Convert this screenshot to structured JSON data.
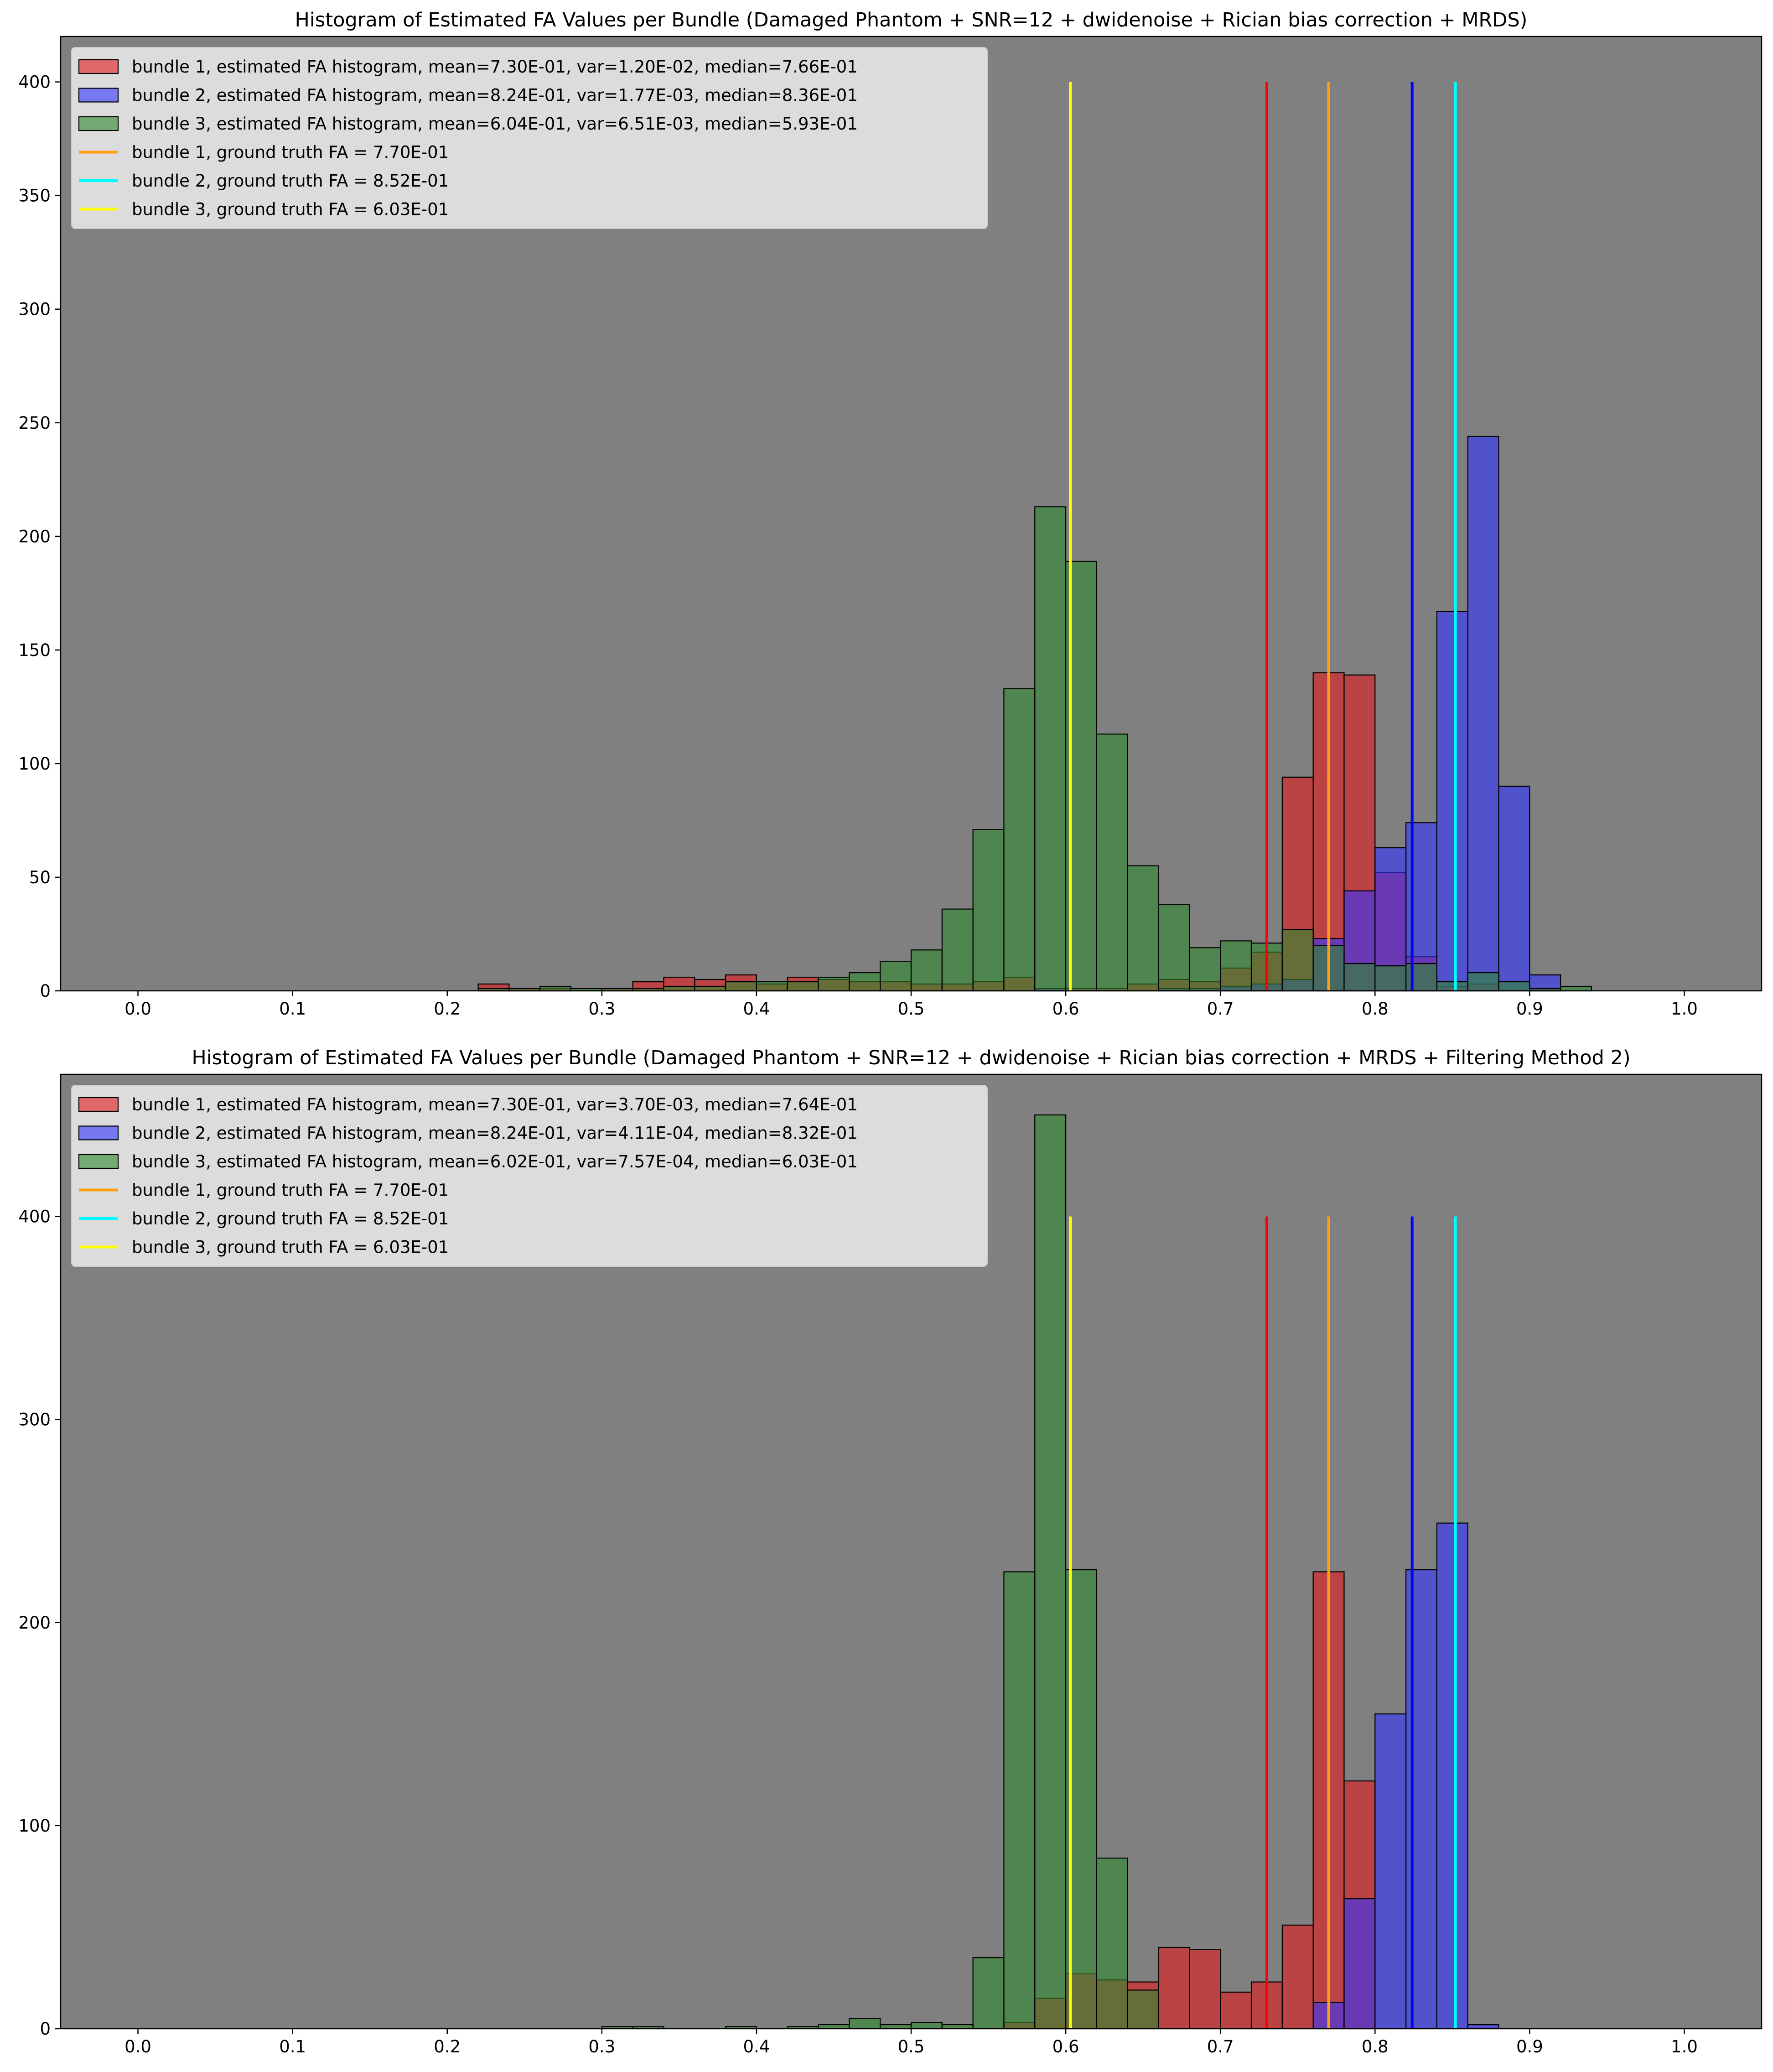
{
  "colors": {
    "plot_bg": "#808080",
    "legend_bg": "#e5e5e5",
    "bar_edge": "#000000",
    "bundle1": "#e41a1c",
    "bundle2": "#3333ff",
    "bundle3": "#2e8b2e",
    "gt1": "#ff9f10",
    "gt2": "#00ffff",
    "gt3": "#ffff00",
    "mean1": "#ff0000",
    "mean2": "#0000ff"
  },
  "chart_data": [
    {
      "type": "histogram",
      "title": "Histogram of Estimated FA Values per Bundle (Damaged Phantom + SNR=12 + dwidenoise + Rician bias correction + MRDS)",
      "xlim": [
        -0.05,
        1.05
      ],
      "ylim": [
        0,
        420
      ],
      "xticks": [
        "0.0",
        "0.1",
        "0.2",
        "0.3",
        "0.4",
        "0.5",
        "0.6",
        "0.7",
        "0.8",
        "0.9",
        "1.0"
      ],
      "xtick_values": [
        0,
        0.1,
        0.2,
        0.3,
        0.4,
        0.5,
        0.6,
        0.7,
        0.8,
        0.9,
        1.0
      ],
      "yticks": [
        "0",
        "50",
        "100",
        "150",
        "200",
        "250",
        "300",
        "350",
        "400"
      ],
      "ytick_values": [
        0,
        50,
        100,
        150,
        200,
        250,
        300,
        350,
        400
      ],
      "legend_placement": "upper-left",
      "grid": false,
      "bin_edges": [
        0.22,
        0.24,
        0.26,
        0.28,
        0.3,
        0.32,
        0.34,
        0.36,
        0.38,
        0.4,
        0.42,
        0.44,
        0.46,
        0.48,
        0.5,
        0.52,
        0.54,
        0.56,
        0.58,
        0.6,
        0.62,
        0.64,
        0.66,
        0.68,
        0.7,
        0.72,
        0.74,
        0.76,
        0.78,
        0.8,
        0.82,
        0.84,
        0.86,
        0.88,
        0.9,
        0.92,
        0.94
      ],
      "series": [
        {
          "name": "bundle 1, estimated FA histogram, mean=7.30E-01, var=1.20E-02, median=7.66E-01",
          "color_key": "bundle1",
          "counts": [
            3,
            1,
            1,
            0,
            1,
            4,
            6,
            5,
            7,
            3,
            6,
            5,
            4,
            4,
            3,
            3,
            4,
            6,
            1,
            1,
            1,
            3,
            5,
            4,
            10,
            17,
            94,
            140,
            139,
            52,
            15,
            2,
            3,
            0,
            1,
            0,
            0
          ]
        },
        {
          "name": "bundle 2, estimated FA histogram, mean=8.24E-01, var=1.77E-03, median=8.36E-01",
          "color_key": "bundle2",
          "counts": [
            0,
            0,
            0,
            0,
            0,
            0,
            0,
            0,
            0,
            0,
            0,
            0,
            0,
            0,
            0,
            0,
            0,
            0,
            1,
            0,
            0,
            0,
            1,
            1,
            2,
            3,
            5,
            23,
            44,
            63,
            74,
            167,
            244,
            90,
            7,
            0,
            0
          ]
        },
        {
          "name": "bundle 3, estimated FA histogram, mean=6.04E-01, var=6.51E-03, median=5.93E-01",
          "color_key": "bundle3",
          "counts": [
            1,
            1,
            2,
            1,
            1,
            1,
            2,
            2,
            4,
            4,
            4,
            6,
            8,
            13,
            18,
            36,
            71,
            133,
            213,
            189,
            113,
            55,
            38,
            19,
            22,
            21,
            27,
            20,
            12,
            11,
            12,
            4,
            8,
            4,
            1,
            2,
            0
          ]
        }
      ],
      "lines": [
        {
          "name": "",
          "x": 0.73,
          "ymax": 400,
          "color_key": "mean1"
        },
        {
          "name": "bundle 1, ground truth FA = 7.70E-01",
          "x": 0.77,
          "ymax": 400,
          "color_key": "gt1"
        },
        {
          "name": "",
          "x": 0.824,
          "ymax": 400,
          "color_key": "mean2"
        },
        {
          "name": "bundle 2, ground truth FA = 8.52E-01",
          "x": 0.852,
          "ymax": 400,
          "color_key": "gt2"
        },
        {
          "name": "bundle 3, ground truth FA = 6.03E-01",
          "x": 0.603,
          "ymax": 400,
          "color_key": "gt3"
        }
      ]
    },
    {
      "type": "histogram",
      "title": "Histogram of Estimated FA Values per Bundle (Damaged Phantom + SNR=12 + dwidenoise + Rician bias correction + MRDS + Filtering Method 2)",
      "xlim": [
        -0.05,
        1.05
      ],
      "ylim": [
        0,
        470
      ],
      "xticks": [
        "0.0",
        "0.1",
        "0.2",
        "0.3",
        "0.4",
        "0.5",
        "0.6",
        "0.7",
        "0.8",
        "0.9",
        "1.0"
      ],
      "xtick_values": [
        0,
        0.1,
        0.2,
        0.3,
        0.4,
        0.5,
        0.6,
        0.7,
        0.8,
        0.9,
        1.0
      ],
      "yticks": [
        "0",
        "100",
        "200",
        "300",
        "400"
      ],
      "ytick_values": [
        0,
        100,
        200,
        300,
        400
      ],
      "legend_placement": "upper-left",
      "grid": false,
      "bin_edges": [
        0.3,
        0.32,
        0.34,
        0.36,
        0.38,
        0.4,
        0.42,
        0.44,
        0.46,
        0.48,
        0.5,
        0.52,
        0.54,
        0.56,
        0.58,
        0.6,
        0.62,
        0.64,
        0.66,
        0.68,
        0.7,
        0.72,
        0.74,
        0.76,
        0.78,
        0.8,
        0.82,
        0.84,
        0.86,
        0.88
      ],
      "series": [
        {
          "name": "bundle 1, estimated FA histogram, mean=7.30E-01, var=3.70E-03, median=7.64E-01",
          "color_key": "bundle1",
          "counts": [
            0,
            0,
            0,
            0,
            0,
            0,
            0,
            0,
            0,
            0,
            0,
            0,
            0,
            3,
            15,
            27,
            24,
            23,
            40,
            39,
            18,
            23,
            51,
            225,
            122,
            0,
            0,
            0,
            0,
            0
          ]
        },
        {
          "name": "bundle 2, estimated FA histogram, mean=8.24E-01, var=4.11E-04, median=8.32E-01",
          "color_key": "bundle2",
          "counts": [
            0,
            0,
            0,
            0,
            0,
            0,
            0,
            0,
            0,
            0,
            0,
            0,
            0,
            0,
            0,
            0,
            0,
            0,
            0,
            0,
            0,
            0,
            0,
            13,
            64,
            155,
            226,
            249,
            2,
            0
          ]
        },
        {
          "name": "bundle 3, estimated FA histogram, mean=6.02E-01, var=7.57E-04, median=6.03E-01",
          "color_key": "bundle3",
          "counts": [
            1,
            1,
            0,
            0,
            1,
            0,
            1,
            2,
            5,
            2,
            3,
            2,
            35,
            225,
            450,
            226,
            84,
            19,
            0,
            0,
            0,
            0,
            0,
            0,
            0,
            0,
            0,
            0,
            0,
            0
          ]
        }
      ],
      "lines": [
        {
          "name": "",
          "x": 0.73,
          "ymax": 400,
          "color_key": "mean1"
        },
        {
          "name": "bundle 1, ground truth FA = 7.70E-01",
          "x": 0.77,
          "ymax": 400,
          "color_key": "gt1"
        },
        {
          "name": "",
          "x": 0.824,
          "ymax": 400,
          "color_key": "mean2"
        },
        {
          "name": "bundle 2, ground truth FA = 8.52E-01",
          "x": 0.852,
          "ymax": 400,
          "color_key": "gt2"
        },
        {
          "name": "bundle 3, ground truth FA = 6.03E-01",
          "x": 0.603,
          "ymax": 400,
          "color_key": "gt3"
        }
      ]
    }
  ]
}
